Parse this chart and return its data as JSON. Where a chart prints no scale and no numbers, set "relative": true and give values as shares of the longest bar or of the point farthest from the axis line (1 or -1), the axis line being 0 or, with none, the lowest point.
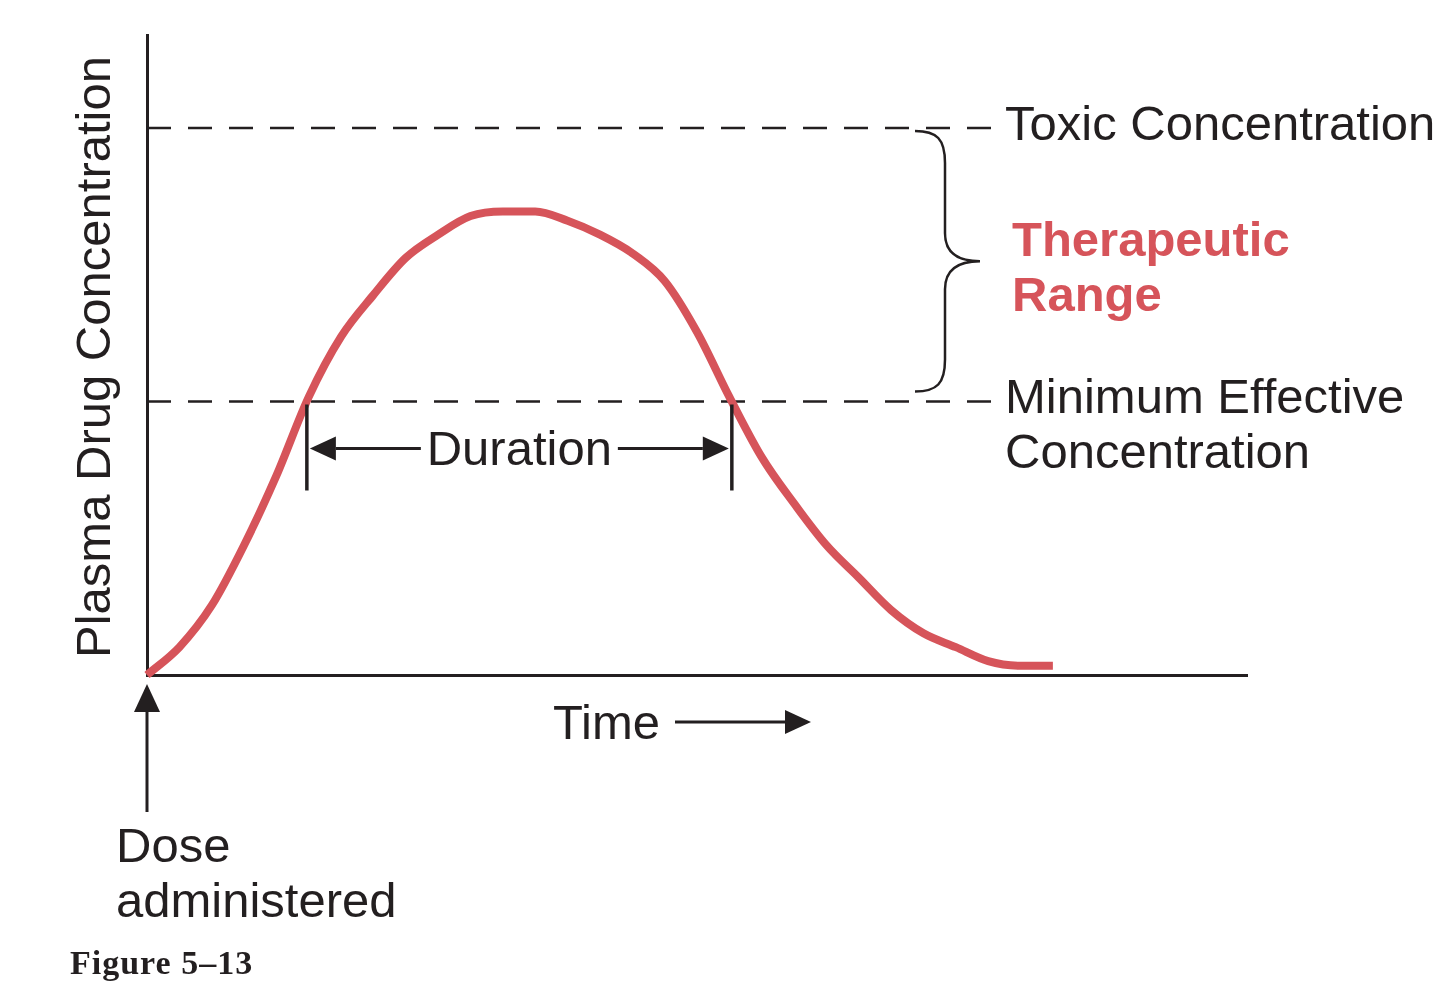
{
  "chart_data": {
    "type": "line",
    "xlabel": "Time",
    "ylabel": "Plasma Drug Concentration",
    "relative": true,
    "tick_labels": false,
    "categories": [
      null,
      null,
      null,
      null,
      null,
      null,
      null,
      null,
      null,
      null,
      null,
      null,
      null,
      null,
      null,
      null,
      null,
      null,
      null,
      null,
      null,
      null,
      null,
      null,
      null,
      null,
      null,
      null,
      null,
      null,
      null,
      null,
      null,
      null,
      null
    ],
    "series": [
      {
        "color": "#d6545a",
        "values": [
          0,
          0.06,
          0.15,
          0.28,
          0.43,
          0.6,
          0.73,
          0.82,
          0.9,
          0.95,
          0.99,
          1,
          1,
          0.98,
          0.95,
          0.91,
          0.85,
          0.74,
          0.6,
          0.47,
          0.37,
          0.28,
          0.21,
          0.14,
          0.09,
          0.06,
          0.03,
          0.02,
          0.02,
          null,
          null,
          null,
          null,
          null,
          null
        ]
      }
    ],
    "ref_lines": [
      {
        "axis": "y",
        "value": 1.18,
        "label": "Toxic Concentration",
        "color": "#231f20",
        "line_style": "dashed"
      },
      {
        "axis": "y",
        "value": 0.59,
        "label": "Minimum Effective Concentration",
        "color": "#231f20",
        "line_style": "dashed"
      }
    ],
    "annotations": [
      "Therapeutic Range",
      "Duration",
      "Dose administered",
      "Figure 5–13"
    ]
  }
}
